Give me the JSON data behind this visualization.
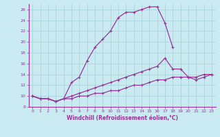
{
  "xlabel": "Windchill (Refroidissement éolien,°C)",
  "bg_color": "#c8eaf0",
  "line_color": "#993399",
  "grid_color": "#aad4dc",
  "series1_x": [
    0,
    1,
    2,
    3,
    4,
    5,
    6,
    7,
    8,
    9,
    10,
    11,
    12,
    13,
    14,
    15,
    16,
    17,
    18
  ],
  "series1_y": [
    10.0,
    9.5,
    9.5,
    9.0,
    9.5,
    12.5,
    13.5,
    16.5,
    19.0,
    20.5,
    22.0,
    24.5,
    25.5,
    25.5,
    26.0,
    26.5,
    26.5,
    23.5,
    19.0
  ],
  "series2_x": [
    0,
    1,
    2,
    3,
    4,
    5,
    6,
    7,
    8,
    9,
    10,
    11,
    12,
    13,
    14,
    15,
    16,
    17,
    18,
    19,
    20,
    21,
    22,
    23
  ],
  "series2_y": [
    10.0,
    9.5,
    9.5,
    9.0,
    9.5,
    10.0,
    10.5,
    11.0,
    11.5,
    12.0,
    12.5,
    13.0,
    13.5,
    14.0,
    14.5,
    15.0,
    15.5,
    17.0,
    15.0,
    15.0,
    13.5,
    13.0,
    13.5,
    14.0
  ],
  "series3_x": [
    0,
    1,
    2,
    3,
    4,
    5,
    6,
    7,
    8,
    9,
    10,
    11,
    12,
    13,
    14,
    15,
    16,
    17,
    18,
    19,
    20,
    21,
    22,
    23
  ],
  "series3_y": [
    10.0,
    9.5,
    9.5,
    9.0,
    9.5,
    9.5,
    10.0,
    10.0,
    10.5,
    10.5,
    11.0,
    11.0,
    11.5,
    12.0,
    12.0,
    12.5,
    13.0,
    13.0,
    13.5,
    13.5,
    13.5,
    13.5,
    14.0,
    14.0
  ],
  "xlim": [
    -0.5,
    23.5
  ],
  "ylim": [
    8,
    27
  ],
  "yticks": [
    8,
    10,
    12,
    14,
    16,
    18,
    20,
    22,
    24,
    26
  ],
  "xticks": [
    0,
    1,
    2,
    3,
    4,
    5,
    6,
    7,
    8,
    9,
    10,
    11,
    12,
    13,
    14,
    15,
    16,
    17,
    18,
    19,
    20,
    21,
    22,
    23
  ]
}
